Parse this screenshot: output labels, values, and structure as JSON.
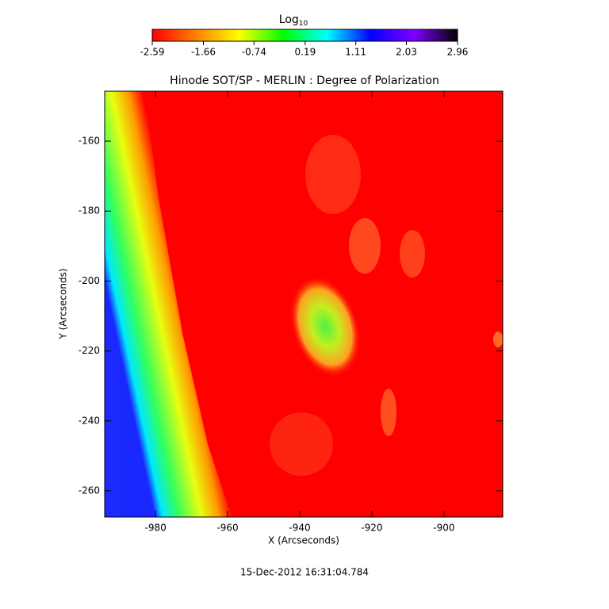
{
  "chart_data": {
    "type": "image",
    "title": "Hinode SOT/SP - MERLIN : Degree of Polarization",
    "x_label": "X (Arcseconds)",
    "y_label": "Y (Arcseconds)",
    "xlim": [
      -994.1,
      -883.7
    ],
    "xticks": [
      -980,
      -960,
      -940,
      -920,
      -900
    ],
    "ylim": [
      -267.5,
      -145.7
    ],
    "yticks": [
      -160,
      -180,
      -200,
      -220,
      -240,
      -260
    ],
    "colorbar": {
      "label": "Log",
      "label_subscript": "10",
      "lim": [
        -2.59,
        2.96
      ],
      "ticks": [
        -2.59,
        -1.66,
        -0.74,
        0.19,
        1.11,
        2.03,
        2.96
      ],
      "colors": [
        "#ff0000",
        "#ff8000",
        "#ffff00",
        "#00ff00",
        "#00ffff",
        "#0000ff",
        "#8000ff",
        "#000000"
      ]
    },
    "date": "15-Dec-2012 16:31:04.784"
  }
}
